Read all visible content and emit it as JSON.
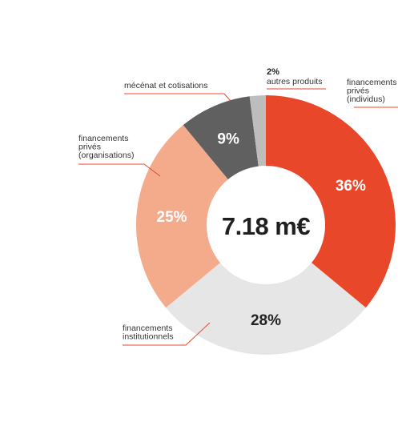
{
  "chart_data": {
    "type": "pie",
    "variant": "donut",
    "center_label": "7.18 m€",
    "slices": [
      {
        "key": "individus",
        "value": 36,
        "pct_label": "36%",
        "label_lines": [
          "financements",
          "privés",
          "(individus)"
        ],
        "color": "#e8472a",
        "label_color": "#ffffff",
        "leader_color": "#e8472a"
      },
      {
        "key": "institutionnels",
        "value": 28,
        "pct_label": "28%",
        "label_lines": [
          "financements",
          "institutionnels"
        ],
        "color": "#e6e6e6",
        "label_color": "#222222",
        "leader_color": "#e8472a"
      },
      {
        "key": "organisations",
        "value": 25,
        "pct_label": "25%",
        "label_lines": [
          "financements",
          "privés",
          "(organisations)"
        ],
        "color": "#f4ab8c",
        "label_color": "#ffffff",
        "leader_color": "#e8472a"
      },
      {
        "key": "mecenat",
        "value": 9,
        "pct_label": "9%",
        "label_lines": [
          "mécénat et cotisations"
        ],
        "color": "#606060",
        "label_color": "#ffffff",
        "leader_color": "#e8472a"
      },
      {
        "key": "autres",
        "value": 2,
        "pct_label": "2%",
        "label_lines": [
          "autres produits"
        ],
        "color": "#bdbdbd",
        "label_color": "#222222",
        "leader_color": "#e8472a"
      }
    ]
  }
}
